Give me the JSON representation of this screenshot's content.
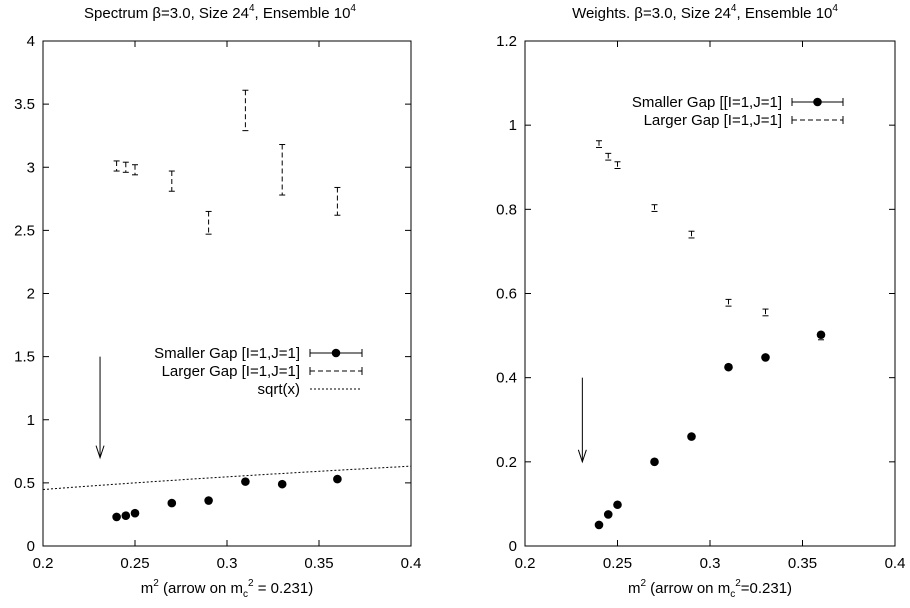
{
  "chart_data": [
    {
      "type": "scatter",
      "title": "Spectrum  β=3.0, Size 24⁴, Ensemble 10⁴",
      "xlabel": "m² (arrow on m_c² = 0.231)",
      "ylabel": "",
      "xlim": [
        0.2,
        0.4
      ],
      "ylim": [
        0,
        4
      ],
      "xticks": [
        "0.2",
        "0.25",
        "0.3",
        "0.35",
        "0.4"
      ],
      "yticks": [
        "0",
        "0.5",
        "1",
        "1.5",
        "2",
        "2.5",
        "3",
        "3.5",
        "4"
      ],
      "legend_position": "center-right",
      "arrow": {
        "x": 0.231,
        "y_from": 1.5,
        "y_to": 0.7
      },
      "series": [
        {
          "name": "Smaller Gap [I=1,J=1]",
          "style": "points-errorbars",
          "color": "#000000",
          "x": [
            0.24,
            0.245,
            0.25,
            0.27,
            0.29,
            0.31,
            0.33,
            0.36
          ],
          "y": [
            0.23,
            0.24,
            0.26,
            0.34,
            0.36,
            0.51,
            0.49,
            0.53
          ],
          "err": [
            0.01,
            0.01,
            0.01,
            0.01,
            0.01,
            0.01,
            0.01,
            0.01
          ]
        },
        {
          "name": "Larger Gap [I=1,J=1]",
          "style": "errorbars-dashed",
          "color": "#000000",
          "x": [
            0.24,
            0.245,
            0.25,
            0.27,
            0.29,
            0.31,
            0.33,
            0.36
          ],
          "y": [
            3.01,
            3.0,
            2.98,
            2.89,
            2.56,
            3.45,
            2.98,
            2.73
          ],
          "err": [
            0.04,
            0.04,
            0.04,
            0.08,
            0.09,
            0.16,
            0.2,
            0.11
          ]
        },
        {
          "name": "sqrt(x)",
          "style": "dotted-line",
          "color": "#000000",
          "function": "sqrt"
        }
      ]
    },
    {
      "type": "scatter",
      "title": "Weights. β=3.0, Size 24⁴, Ensemble 10⁴",
      "xlabel": "m² (arrow on m_c²=0.231)",
      "ylabel": "",
      "xlim": [
        0.2,
        0.4
      ],
      "ylim": [
        0,
        1.2
      ],
      "xticks": [
        "0.2",
        "0.25",
        "0.3",
        "0.35",
        "0.4"
      ],
      "yticks": [
        "0",
        "0.2",
        "0.4",
        "0.6",
        "0.8",
        "1",
        "1.2"
      ],
      "legend_position": "top-right",
      "arrow": {
        "x": 0.231,
        "y_from": 0.4,
        "y_to": 0.2
      },
      "series": [
        {
          "name": "Smaller Gap [[I=1,J=1]",
          "style": "points-errorbars",
          "color": "#000000",
          "x": [
            0.24,
            0.245,
            0.25,
            0.27,
            0.29,
            0.31,
            0.33,
            0.36
          ],
          "y": [
            0.05,
            0.075,
            0.098,
            0.2,
            0.26,
            0.425,
            0.448,
            0.502
          ],
          "err": [
            0.003,
            0.003,
            0.003,
            0.003,
            0.003,
            0.003,
            0.003,
            0.003
          ]
        },
        {
          "name": "Larger Gap [I=1,J=1]",
          "style": "errorbars-dashed",
          "color": "#000000",
          "x": [
            0.24,
            0.245,
            0.25,
            0.27,
            0.29,
            0.31,
            0.33,
            0.36
          ],
          "y": [
            0.955,
            0.925,
            0.905,
            0.803,
            0.74,
            0.578,
            0.555,
            0.498
          ],
          "err": [
            0.008,
            0.008,
            0.008,
            0.008,
            0.008,
            0.008,
            0.008,
            0.008
          ]
        }
      ]
    }
  ]
}
